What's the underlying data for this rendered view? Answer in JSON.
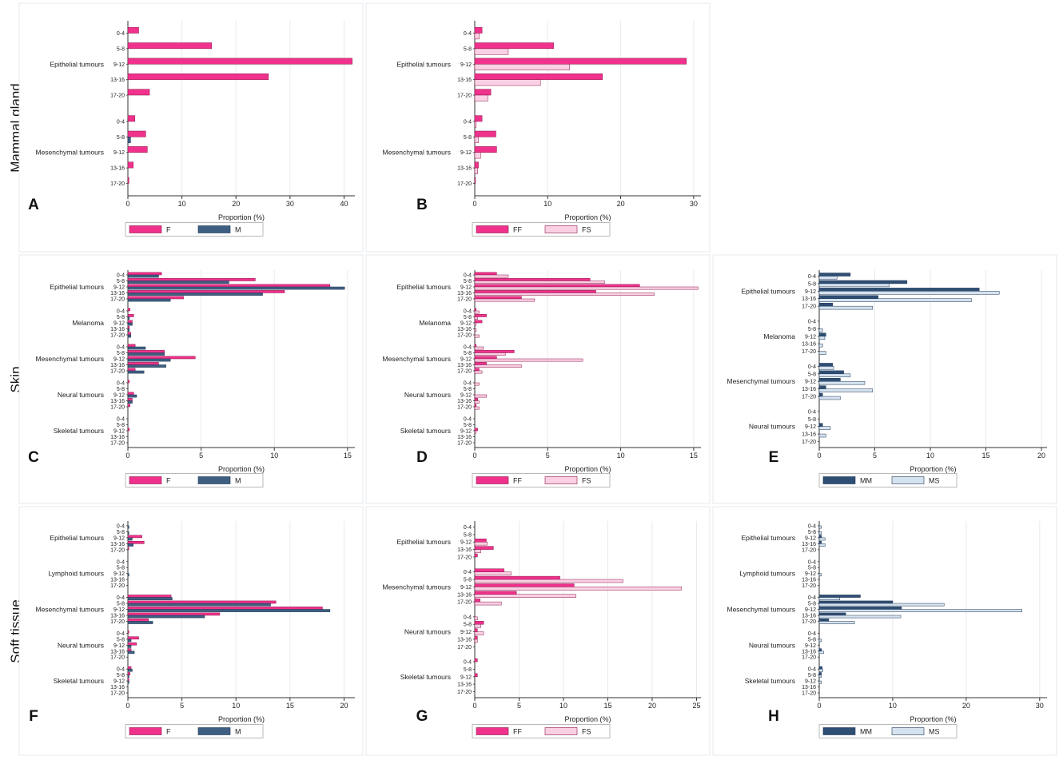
{
  "row_labels": [
    "Mammal gland",
    "Skin",
    "Soft tissue"
  ],
  "colors": {
    "F": "#f0328c",
    "M": "#3f5f82",
    "FF": "#f0328c",
    "FS": "#fbd0e4",
    "MM": "#2f4e74",
    "MS": "#d5e2ef",
    "outline": "#8a1448",
    "outline_blue": "#1e3654",
    "panel_border": "#e4e9ee",
    "grid": "#eaeaea"
  },
  "chart_data": [
    {
      "panel": "A",
      "type": "bar",
      "orientation": "horizontal",
      "xlabel": "Proportion (%)",
      "xlim": [
        0,
        42
      ],
      "xticks": [
        0,
        10,
        20,
        30,
        40
      ],
      "age_groups": [
        "0-4",
        "5-8",
        "9-12",
        "13-16",
        "17-20"
      ],
      "groups": [
        "Epithelial tumours",
        "Mesenchymal tumours"
      ],
      "series": [
        {
          "name": "F",
          "color_key": "F",
          "values": [
            [
              2.0,
              15.5,
              41.5,
              26.0,
              4.0
            ],
            [
              1.3,
              3.3,
              3.6,
              1.0,
              0.2
            ]
          ]
        },
        {
          "name": "M",
          "color_key": "M",
          "values": [
            [
              0,
              0,
              0,
              0,
              0
            ],
            [
              0,
              0.5,
              0,
              0,
              0
            ]
          ]
        }
      ],
      "legend": [
        "F",
        "M"
      ]
    },
    {
      "panel": "B",
      "type": "bar",
      "orientation": "horizontal",
      "xlabel": "Proportion (%)",
      "xlim": [
        0,
        31
      ],
      "xticks": [
        0,
        10,
        20,
        30
      ],
      "age_groups": [
        "0-4",
        "5-8",
        "9-12",
        "13-16",
        "17-20"
      ],
      "groups": [
        "Epithelial tumours",
        "Mesenchymal tumours"
      ],
      "series": [
        {
          "name": "FF",
          "color_key": "FF",
          "values": [
            [
              1.0,
              10.8,
              29.0,
              17.5,
              2.2
            ],
            [
              1.0,
              2.9,
              3.0,
              0.5,
              0.1
            ]
          ]
        },
        {
          "name": "FS",
          "color_key": "FS",
          "values": [
            [
              0.6,
              4.6,
              13.0,
              9.0,
              1.8
            ],
            [
              0.2,
              0.5,
              0.8,
              0.4,
              0
            ]
          ]
        }
      ],
      "legend": [
        "FF",
        "FS"
      ]
    },
    {
      "panel": "C",
      "type": "bar",
      "orientation": "horizontal",
      "xlabel": "Proportion (%)",
      "xlim": [
        0,
        15.5
      ],
      "xticks": [
        0,
        5,
        10,
        15
      ],
      "age_groups": [
        "0-4",
        "5-8",
        "9-12",
        "13-16",
        "17-20"
      ],
      "groups": [
        "Epithelial tumours",
        "Melanoma",
        "Mesenchymal tumours",
        "Neural tumours",
        "Skeletal tumours"
      ],
      "series": [
        {
          "name": "F",
          "color_key": "F",
          "values": [
            [
              2.3,
              8.7,
              13.8,
              10.7,
              3.8
            ],
            [
              0.15,
              0.4,
              0.3,
              0.1,
              0.2
            ],
            [
              0.5,
              2.5,
              4.6,
              2.1,
              0.5
            ],
            [
              0.1,
              0,
              0.4,
              0.3,
              0.15
            ],
            [
              0,
              0,
              0.1,
              0,
              0
            ]
          ]
        },
        {
          "name": "M",
          "color_key": "M",
          "values": [
            [
              2.1,
              6.9,
              14.8,
              9.2,
              2.9
            ],
            [
              0,
              0.1,
              0.3,
              0.1,
              0.2
            ],
            [
              1.2,
              2.5,
              2.9,
              2.6,
              1.1
            ],
            [
              0,
              0,
              0.6,
              0.3,
              0
            ],
            [
              0,
              0,
              0,
              0,
              0
            ]
          ]
        }
      ],
      "legend": [
        "F",
        "M"
      ]
    },
    {
      "panel": "D",
      "type": "bar",
      "orientation": "horizontal",
      "xlabel": "Proportion (%)",
      "xlim": [
        0,
        15.5
      ],
      "xticks": [
        0,
        5,
        10,
        15
      ],
      "age_groups": [
        "0-4",
        "5-8",
        "9-12",
        "13-16",
        "17-20"
      ],
      "groups": [
        "Epithelial tumours",
        "Melanoma",
        "Mesenchymal tumours",
        "Neural tumours",
        "Skeletal tumours"
      ],
      "series": [
        {
          "name": "FF",
          "color_key": "FF",
          "values": [
            [
              1.5,
              7.9,
              11.3,
              8.3,
              3.2
            ],
            [
              0.1,
              0.8,
              0.5,
              0,
              0
            ],
            [
              0.1,
              2.7,
              1.5,
              0.8,
              0.3
            ],
            [
              0,
              0,
              0,
              0.2,
              0.1
            ],
            [
              0,
              0,
              0.2,
              0,
              0
            ]
          ]
        },
        {
          "name": "FS",
          "color_key": "FS",
          "values": [
            [
              2.3,
              8.9,
              15.3,
              12.3,
              4.1
            ],
            [
              0.3,
              0.2,
              0.1,
              0.1,
              0.3
            ],
            [
              0.6,
              2.1,
              7.4,
              3.2,
              0.5
            ],
            [
              0.3,
              0,
              0.8,
              0.3,
              0.3
            ],
            [
              0,
              0,
              0.1,
              0,
              0
            ]
          ]
        }
      ],
      "legend": [
        "FF",
        "FS"
      ]
    },
    {
      "panel": "E",
      "type": "bar",
      "orientation": "horizontal",
      "xlabel": "Proportion (%)",
      "xlim": [
        0,
        20.5
      ],
      "xticks": [
        0,
        5,
        10,
        15,
        20
      ],
      "age_groups": [
        "0-4",
        "5-8",
        "9-12",
        "13-16",
        "17-20"
      ],
      "groups": [
        "Epithelial tumours",
        "Melanoma",
        "Mesenchymal tumours",
        "Neural tumours"
      ],
      "series": [
        {
          "name": "MM",
          "color_key": "MM",
          "values": [
            [
              2.8,
              7.9,
              14.4,
              5.3,
              1.2
            ],
            [
              0,
              0,
              0.6,
              0,
              0
            ],
            [
              1.2,
              2.2,
              1.9,
              0.6,
              0.3
            ],
            [
              0,
              0,
              0.3,
              0,
              0
            ]
          ]
        },
        {
          "name": "MS",
          "color_key": "MS",
          "values": [
            [
              1.6,
              6.3,
              16.2,
              13.7,
              4.8
            ],
            [
              0,
              0.3,
              0.5,
              0.3,
              0.6
            ],
            [
              1.3,
              2.8,
              4.1,
              4.8,
              1.9
            ],
            [
              0,
              0,
              1.0,
              0.6,
              0
            ]
          ]
        }
      ],
      "legend": [
        "MM",
        "MS"
      ]
    },
    {
      "panel": "F",
      "type": "bar",
      "orientation": "horizontal",
      "xlabel": "Proportion (%)",
      "xlim": [
        0,
        21
      ],
      "xticks": [
        0,
        5,
        10,
        15,
        20
      ],
      "age_groups": [
        "0-4",
        "5-8",
        "9-12",
        "13-16",
        "17-20"
      ],
      "groups": [
        "Epithelial tumours",
        "Lymphoid tumours",
        "Mesenchymal tumours",
        "Neural tumours",
        "Skeletal tumours"
      ],
      "series": [
        {
          "name": "F",
          "color_key": "F",
          "values": [
            [
              0,
              0,
              1.3,
              1.5,
              0.1
            ],
            [
              0,
              0,
              0,
              0,
              0
            ],
            [
              4.0,
              13.7,
              18.0,
              8.5,
              1.9
            ],
            [
              0.1,
              1.0,
              0.8,
              0.3,
              0
            ],
            [
              0.3,
              0.2,
              0.1,
              0,
              0
            ]
          ]
        },
        {
          "name": "M",
          "color_key": "M",
          "values": [
            [
              0.1,
              0.1,
              0.4,
              0.5,
              0
            ],
            [
              0,
              0,
              0.1,
              0,
              0
            ],
            [
              4.1,
              13.2,
              18.7,
              7.1,
              2.3
            ],
            [
              0,
              0.3,
              0.3,
              0.6,
              0
            ],
            [
              0.4,
              0.1,
              0.1,
              0,
              0
            ]
          ]
        }
      ],
      "legend": [
        "F",
        "M"
      ]
    },
    {
      "panel": "G",
      "type": "bar",
      "orientation": "horizontal",
      "xlabel": "Proportion (%)",
      "xlim": [
        0,
        25.5
      ],
      "xticks": [
        0,
        5,
        10,
        15,
        20,
        25
      ],
      "age_groups": [
        "0-4",
        "5-8",
        "9-12",
        "13-16",
        "17-20"
      ],
      "groups": [
        "Epithelial tumours",
        "Mesenchymal tumours",
        "Neural tumours",
        "Skeletal tumours"
      ],
      "series": [
        {
          "name": "FF",
          "color_key": "FF",
          "values": [
            [
              0,
              0,
              1.3,
              2.1,
              0.3
            ],
            [
              3.3,
              9.6,
              11.2,
              4.7,
              0.6
            ],
            [
              0,
              1.0,
              0.3,
              0.3,
              0
            ],
            [
              0.3,
              0,
              0.3,
              0,
              0
            ]
          ]
        },
        {
          "name": "FS",
          "color_key": "FS",
          "values": [
            [
              0,
              0,
              1.4,
              0.7,
              0
            ],
            [
              4.1,
              16.7,
              23.3,
              11.4,
              3.0
            ],
            [
              0.3,
              0.7,
              1.0,
              0.3,
              0
            ],
            [
              0,
              0,
              0,
              0,
              0
            ]
          ]
        }
      ],
      "legend": [
        "FF",
        "FS"
      ]
    },
    {
      "panel": "H",
      "type": "bar",
      "orientation": "horizontal",
      "xlabel": "Proportion (%)",
      "xlim": [
        0,
        31
      ],
      "xticks": [
        0,
        10,
        20,
        30
      ],
      "age_groups": [
        "0-4",
        "5-8",
        "9-12",
        "13-16",
        "17-20"
      ],
      "groups": [
        "Epithelial tumours",
        "Lymphoid tumours",
        "Mesenchymal tumours",
        "Neural tumours",
        "Skeletal tumours"
      ],
      "series": [
        {
          "name": "MM",
          "color_key": "MM",
          "values": [
            [
              0,
              0,
              0.3,
              0.3,
              0
            ],
            [
              0,
              0,
              0,
              0,
              0
            ],
            [
              5.6,
              10.0,
              11.2,
              3.6,
              1.3
            ],
            [
              0,
              0,
              0,
              0.3,
              0
            ],
            [
              0.4,
              0.3,
              0,
              0,
              0
            ]
          ]
        },
        {
          "name": "MS",
          "color_key": "MS",
          "values": [
            [
              0.3,
              0.3,
              0.8,
              0.8,
              0
            ],
            [
              0,
              0,
              0.3,
              0,
              0
            ],
            [
              2.8,
              17.0,
              27.6,
              11.1,
              4.8
            ],
            [
              0,
              0.3,
              0,
              0.6,
              0
            ],
            [
              0.5,
              0.3,
              0.3,
              0,
              0
            ]
          ]
        }
      ],
      "legend": [
        "MM",
        "MS"
      ]
    }
  ]
}
